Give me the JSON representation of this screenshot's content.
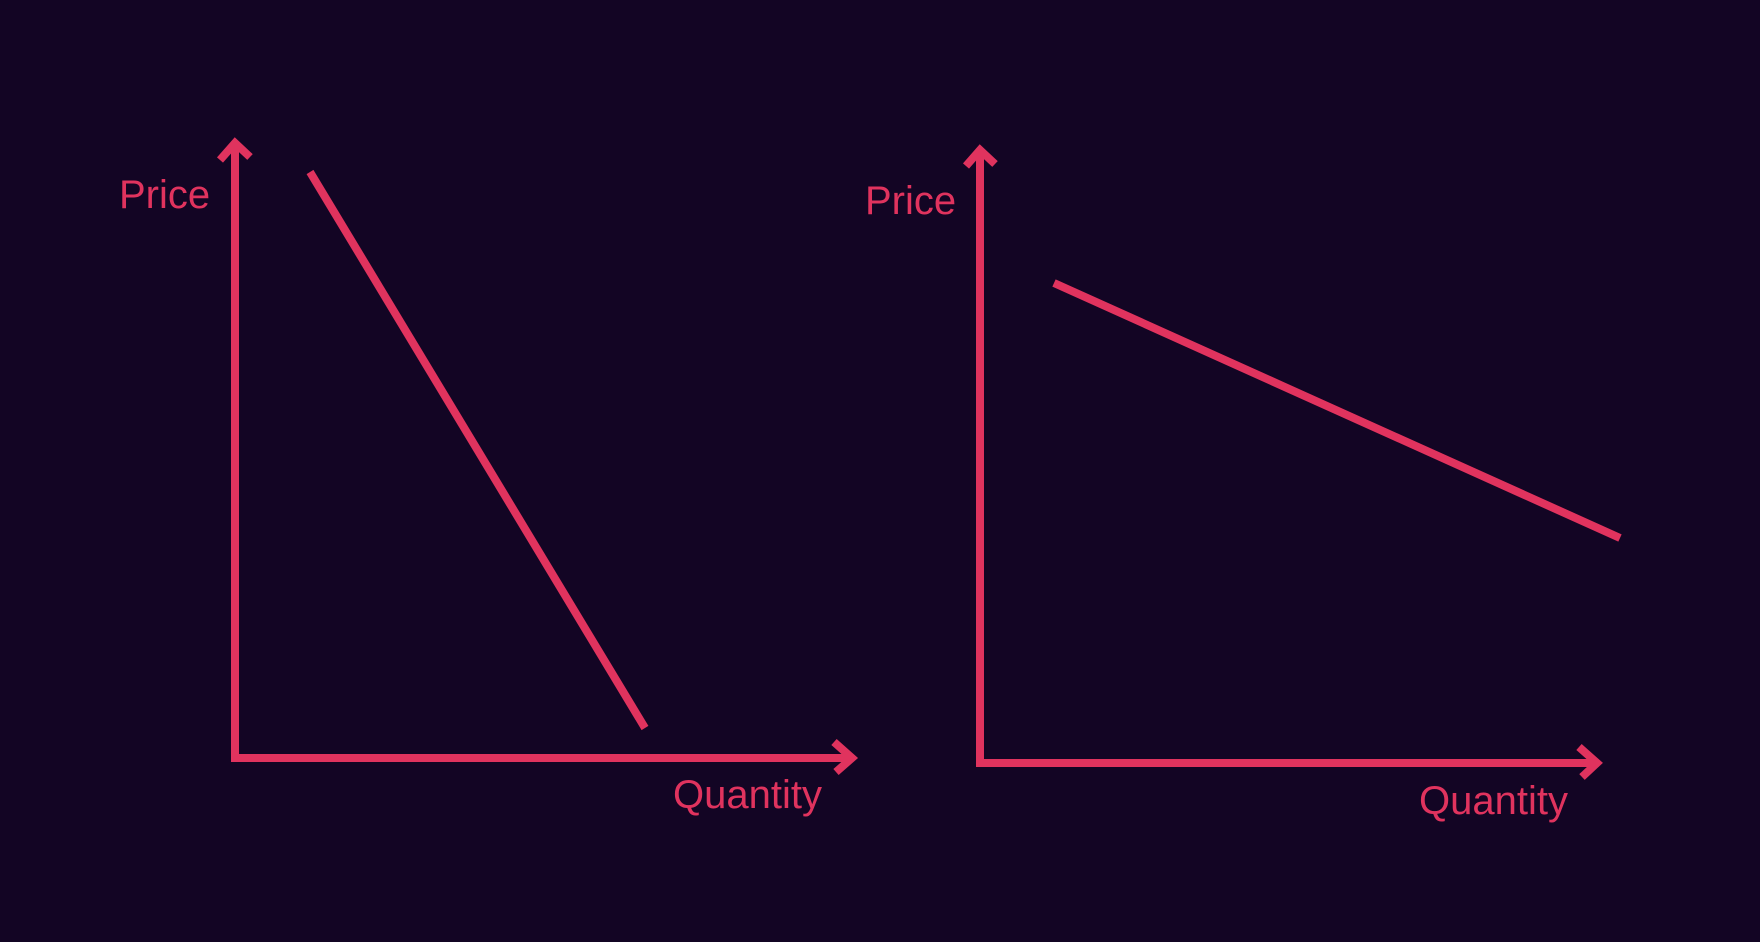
{
  "colors": {
    "background": "#130524",
    "accent": "#e0335e"
  },
  "diagrams": [
    {
      "y_axis_label": "Price",
      "x_axis_label": "Quantity",
      "curve": "steep downward-sloping line"
    },
    {
      "y_axis_label": "Price",
      "x_axis_label": "Quantity",
      "curve": "flat downward-sloping line"
    }
  ]
}
